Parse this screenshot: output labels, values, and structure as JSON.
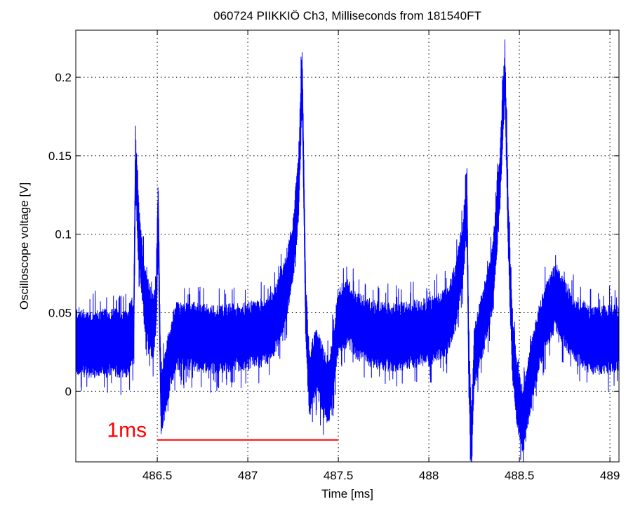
{
  "chart_data": {
    "type": "line",
    "title": "060724 PIIKKIÖ Ch3, Milliseconds from 181540FT",
    "xlabel": "Time [ms]",
    "ylabel": "Oscilloscope voltage [V]",
    "xlim": [
      486.05,
      489.05
    ],
    "ylim": [
      -0.045,
      0.23
    ],
    "xticks": [
      486.5,
      487,
      487.5,
      488,
      488.5,
      489
    ],
    "xtick_labels": [
      "486.5",
      "487",
      "487.5",
      "488",
      "488.5",
      "489"
    ],
    "yticks": [
      0,
      0.05,
      0.1,
      0.15,
      0.2
    ],
    "ytick_labels": [
      "0",
      "0.05",
      "0.1",
      "0.15",
      "0.2"
    ],
    "grid": true,
    "series": [
      {
        "color": "#0000ff",
        "envelope_note": "dense noisy oscilloscope trace, baseline ~0.03 V",
        "points": [
          [
            486.05,
            0.032
          ],
          [
            486.15,
            0.03
          ],
          [
            486.25,
            0.031
          ],
          [
            486.33,
            0.03
          ],
          [
            486.37,
            0.04
          ],
          [
            486.38,
            0.148
          ],
          [
            486.395,
            0.105
          ],
          [
            486.41,
            0.085
          ],
          [
            486.43,
            0.06
          ],
          [
            486.46,
            0.045
          ],
          [
            486.48,
            0.04
          ],
          [
            486.495,
            0.06
          ],
          [
            486.505,
            0.118
          ],
          [
            486.515,
            0.03
          ],
          [
            486.52,
            -0.01
          ],
          [
            486.55,
            0.01
          ],
          [
            486.6,
            0.035
          ],
          [
            486.7,
            0.035
          ],
          [
            486.8,
            0.033
          ],
          [
            486.9,
            0.034
          ],
          [
            487.0,
            0.035
          ],
          [
            487.1,
            0.038
          ],
          [
            487.15,
            0.045
          ],
          [
            487.2,
            0.06
          ],
          [
            487.25,
            0.09
          ],
          [
            487.28,
            0.13
          ],
          [
            487.3,
            0.202
          ],
          [
            487.32,
            0.05
          ],
          [
            487.34,
            0.005
          ],
          [
            487.38,
            0.02
          ],
          [
            487.42,
            0.005
          ],
          [
            487.45,
            0.0
          ],
          [
            487.48,
            0.025
          ],
          [
            487.5,
            0.045
          ],
          [
            487.55,
            0.05
          ],
          [
            487.6,
            0.042
          ],
          [
            487.7,
            0.036
          ],
          [
            487.8,
            0.034
          ],
          [
            487.9,
            0.036
          ],
          [
            488.0,
            0.038
          ],
          [
            488.1,
            0.045
          ],
          [
            488.15,
            0.06
          ],
          [
            488.19,
            0.09
          ],
          [
            488.21,
            0.125
          ],
          [
            488.22,
            0.02
          ],
          [
            488.235,
            -0.036
          ],
          [
            488.25,
            0.02
          ],
          [
            488.3,
            0.045
          ],
          [
            488.35,
            0.07
          ],
          [
            488.39,
            0.13
          ],
          [
            488.42,
            0.203
          ],
          [
            488.44,
            0.1
          ],
          [
            488.46,
            0.03
          ],
          [
            488.48,
            0.005
          ],
          [
            488.5,
            -0.01
          ],
          [
            488.52,
            -0.02
          ],
          [
            488.55,
            0.0
          ],
          [
            488.6,
            0.03
          ],
          [
            488.65,
            0.05
          ],
          [
            488.7,
            0.06
          ],
          [
            488.75,
            0.05
          ],
          [
            488.8,
            0.04
          ],
          [
            488.9,
            0.032
          ],
          [
            489.0,
            0.033
          ],
          [
            489.05,
            0.034
          ]
        ]
      }
    ],
    "annotation": {
      "text": "1ms",
      "color": "#ff0000",
      "bar_x": [
        486.5,
        487.5
      ],
      "bar_y": -0.031
    }
  }
}
